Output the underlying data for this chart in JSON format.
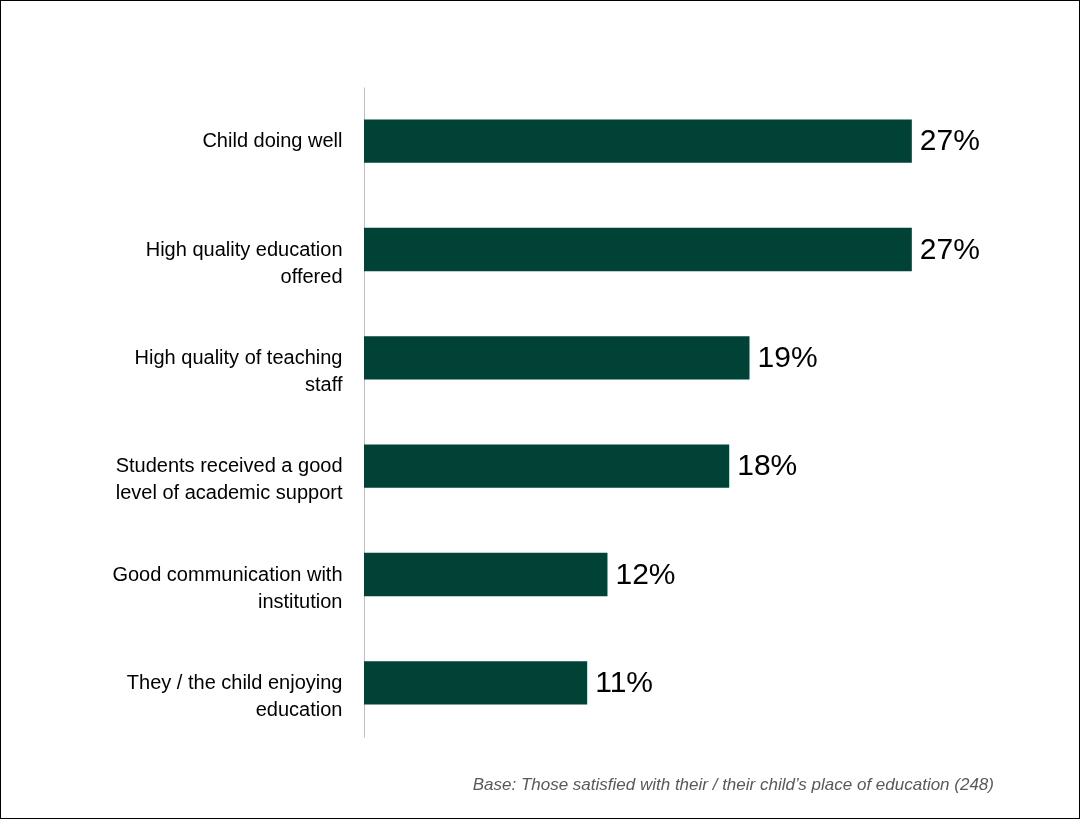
{
  "chart_data": {
    "type": "bar",
    "orientation": "horizontal",
    "categories": [
      "Child doing well",
      "High quality education offered",
      "High quality of teaching staff",
      "Students received a good level of academic support",
      "Good communication with institution",
      "They / the child enjoying education"
    ],
    "values": [
      27,
      27,
      19,
      18,
      12,
      11
    ],
    "value_labels": [
      "27%",
      "27%",
      "19%",
      "18%",
      "12%",
      "11%"
    ],
    "color": "#004236",
    "grid": false,
    "annotations": [
      "Base: Those satisfied with their / their child’s place of education (248)"
    ]
  }
}
